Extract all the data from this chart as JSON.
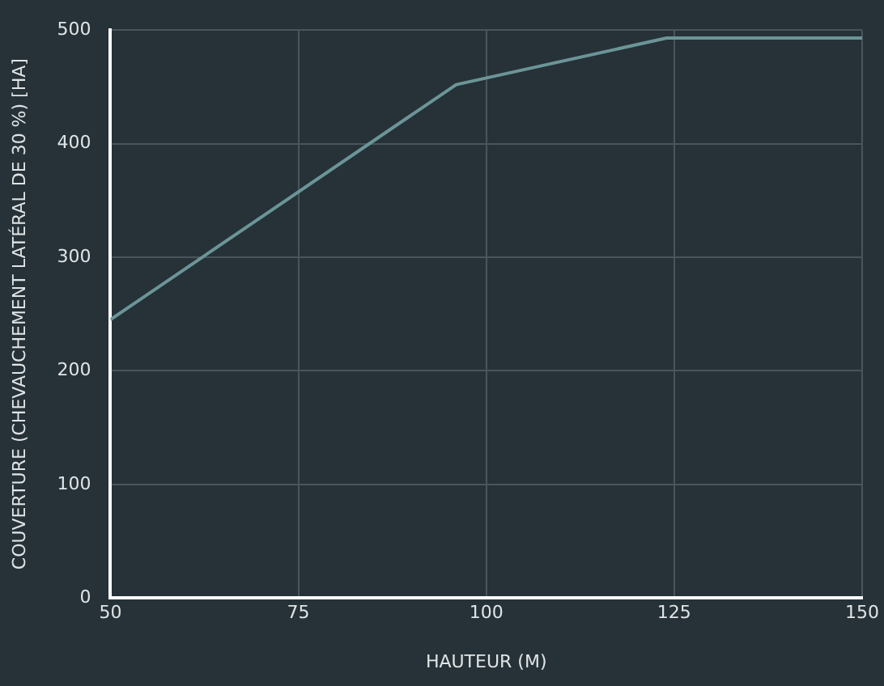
{
  "chart_data": {
    "type": "line",
    "xlabel": "HAUTEUR (M)",
    "ylabel": "COUVERTURE (CHEVAUCHEMENT LATÉRAL DE 30 %) [HA]",
    "x": [
      50,
      96,
      124,
      150
    ],
    "series": [
      {
        "color": "#6b9598",
        "values": [
          245,
          452,
          493,
          493
        ]
      }
    ],
    "xlim": [
      50,
      150
    ],
    "xticks": [
      50,
      75,
      100,
      125,
      150
    ],
    "ylim": [
      0,
      500
    ],
    "yticks": [
      0,
      100,
      200,
      300,
      400,
      500
    ],
    "grid": true,
    "legend": false,
    "marker": "none",
    "line_style": "solid"
  }
}
